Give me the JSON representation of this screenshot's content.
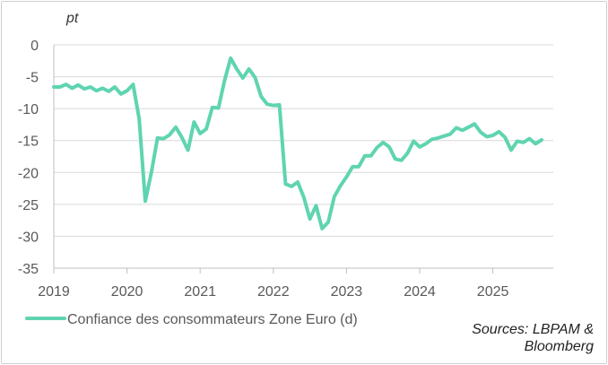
{
  "chart_data": {
    "type": "line",
    "unit_label": "pt",
    "ylim": [
      -35,
      0
    ],
    "y_ticks": [
      "0",
      "-5",
      "-10",
      "-15",
      "-20",
      "-25",
      "-30",
      "-35"
    ],
    "x_ticks": [
      "2019",
      "2020",
      "2021",
      "2022",
      "2023",
      "2024",
      "2025"
    ],
    "grid": "horizontal",
    "legend": "bottom-left",
    "series": [
      {
        "name": "Confiance des consommateurs Zone Euro (d)",
        "color": "#5fd4b0",
        "points": [
          [
            "2019-01",
            -6.6
          ],
          [
            "2019-02",
            -6.6
          ],
          [
            "2019-03",
            -6.2
          ],
          [
            "2019-04",
            -6.8
          ],
          [
            "2019-05",
            -6.3
          ],
          [
            "2019-06",
            -6.9
          ],
          [
            "2019-07",
            -6.6
          ],
          [
            "2019-08",
            -7.2
          ],
          [
            "2019-09",
            -6.8
          ],
          [
            "2019-10",
            -7.3
          ],
          [
            "2019-11",
            -6.6
          ],
          [
            "2019-12",
            -7.7
          ],
          [
            "2020-01",
            -7.2
          ],
          [
            "2020-02",
            -6.2
          ],
          [
            "2020-03",
            -11.6
          ],
          [
            "2020-04",
            -24.5
          ],
          [
            "2020-05",
            -20.0
          ],
          [
            "2020-06",
            -14.6
          ],
          [
            "2020-07",
            -14.7
          ],
          [
            "2020-08",
            -14.1
          ],
          [
            "2020-09",
            -12.9
          ],
          [
            "2020-10",
            -14.5
          ],
          [
            "2020-11",
            -16.5
          ],
          [
            "2020-12",
            -12.1
          ],
          [
            "2021-01",
            -13.9
          ],
          [
            "2021-02",
            -13.2
          ],
          [
            "2021-03",
            -9.8
          ],
          [
            "2021-04",
            -9.9
          ],
          [
            "2021-05",
            -5.6
          ],
          [
            "2021-06",
            -2.1
          ],
          [
            "2021-07",
            -3.8
          ],
          [
            "2021-08",
            -5.2
          ],
          [
            "2021-09",
            -3.8
          ],
          [
            "2021-10",
            -5.1
          ],
          [
            "2021-11",
            -8.1
          ],
          [
            "2021-12",
            -9.3
          ],
          [
            "2022-01",
            -9.5
          ],
          [
            "2022-02",
            -9.4
          ],
          [
            "2022-03",
            -21.8
          ],
          [
            "2022-04",
            -22.2
          ],
          [
            "2022-05",
            -21.5
          ],
          [
            "2022-06",
            -23.9
          ],
          [
            "2022-07",
            -27.3
          ],
          [
            "2022-08",
            -25.2
          ],
          [
            "2022-09",
            -28.8
          ],
          [
            "2022-10",
            -27.8
          ],
          [
            "2022-11",
            -23.8
          ],
          [
            "2022-12",
            -22.1
          ],
          [
            "2023-01",
            -20.7
          ],
          [
            "2023-02",
            -19.1
          ],
          [
            "2023-03",
            -19.1
          ],
          [
            "2023-04",
            -17.4
          ],
          [
            "2023-05",
            -17.4
          ],
          [
            "2023-06",
            -16.1
          ],
          [
            "2023-07",
            -15.3
          ],
          [
            "2023-08",
            -16.0
          ],
          [
            "2023-09",
            -17.9
          ],
          [
            "2023-10",
            -18.1
          ],
          [
            "2023-11",
            -17.0
          ],
          [
            "2023-12",
            -15.1
          ],
          [
            "2024-01",
            -16.0
          ],
          [
            "2024-02",
            -15.5
          ],
          [
            "2024-03",
            -14.8
          ],
          [
            "2024-04",
            -14.6
          ],
          [
            "2024-05",
            -14.3
          ],
          [
            "2024-06",
            -14.0
          ],
          [
            "2024-07",
            -13.0
          ],
          [
            "2024-08",
            -13.4
          ],
          [
            "2024-09",
            -12.9
          ],
          [
            "2024-10",
            -12.4
          ],
          [
            "2024-11",
            -13.7
          ],
          [
            "2024-12",
            -14.4
          ],
          [
            "2025-01",
            -14.2
          ],
          [
            "2025-02",
            -13.6
          ],
          [
            "2025-03",
            -14.5
          ],
          [
            "2025-04",
            -16.5
          ],
          [
            "2025-05",
            -15.1
          ],
          [
            "2025-06",
            -15.3
          ],
          [
            "2025-07",
            -14.7
          ],
          [
            "2025-08",
            -15.5
          ],
          [
            "2025-09",
            -14.9
          ]
        ]
      }
    ]
  },
  "sources": {
    "line1": "Sources: LBPAM &",
    "line2": "Bloomberg"
  }
}
